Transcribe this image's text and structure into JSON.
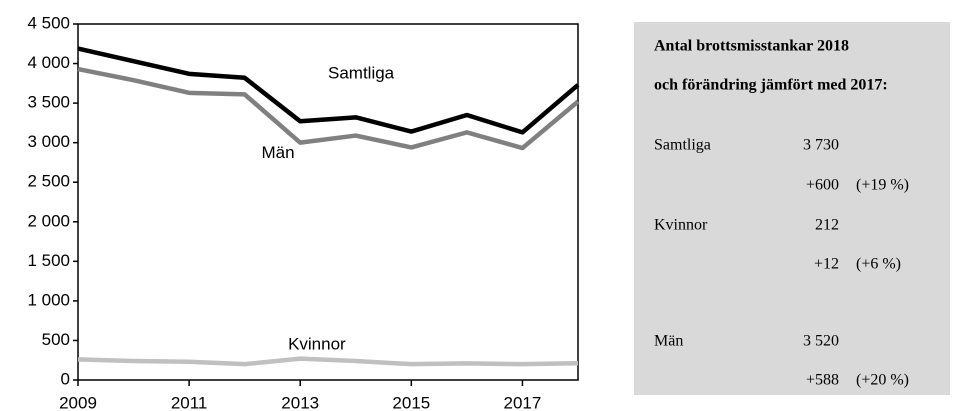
{
  "chart_data": {
    "type": "line",
    "x": [
      2009,
      2010,
      2011,
      2012,
      2013,
      2014,
      2015,
      2016,
      2017,
      2018
    ],
    "series": [
      {
        "name": "Samtliga",
        "color": "#000000",
        "values": [
          4190,
          4030,
          3870,
          3820,
          3270,
          3320,
          3140,
          3350,
          3130,
          3730
        ]
      },
      {
        "name": "Män",
        "color": "#808080",
        "values": [
          3930,
          3790,
          3630,
          3610,
          3000,
          3090,
          2940,
          3130,
          2932,
          3520
        ]
      },
      {
        "name": "Kvinnor",
        "color": "#c0c0c0",
        "values": [
          260,
          240,
          230,
          200,
          270,
          240,
          200,
          210,
          200,
          212
        ]
      }
    ],
    "xlim": [
      2009,
      2018
    ],
    "xticks": [
      2009,
      2011,
      2013,
      2015,
      2017
    ],
    "ylim": [
      0,
      4500
    ],
    "yticks": [
      0,
      500,
      {
        "value": 1000,
        "label": "1 000"
      },
      {
        "value": 1500,
        "label": "1 500"
      },
      {
        "value": 2000,
        "label": "2 000"
      },
      {
        "value": 2500,
        "label": "2 500"
      },
      {
        "value": 3000,
        "label": "3 000"
      },
      {
        "value": 3500,
        "label": "3 500"
      },
      {
        "value": 4000,
        "label": "4 000"
      },
      {
        "value": 4500,
        "label": "4 500"
      }
    ]
  },
  "panel": {
    "title_lines": [
      "Antal brottsmisstankar 2018",
      "och förändring jämfört med 2017:"
    ],
    "rows": [
      {
        "label": "Samtliga",
        "value": "3 730",
        "change": "+600",
        "percent": "(+19 %)"
      },
      {
        "label": "Kvinnor",
        "value": "212",
        "change": "+12",
        "percent": "(+6 %)"
      },
      {
        "label": "Män",
        "value": "3 520",
        "change": "+588",
        "percent": "(+20 %)"
      }
    ]
  }
}
